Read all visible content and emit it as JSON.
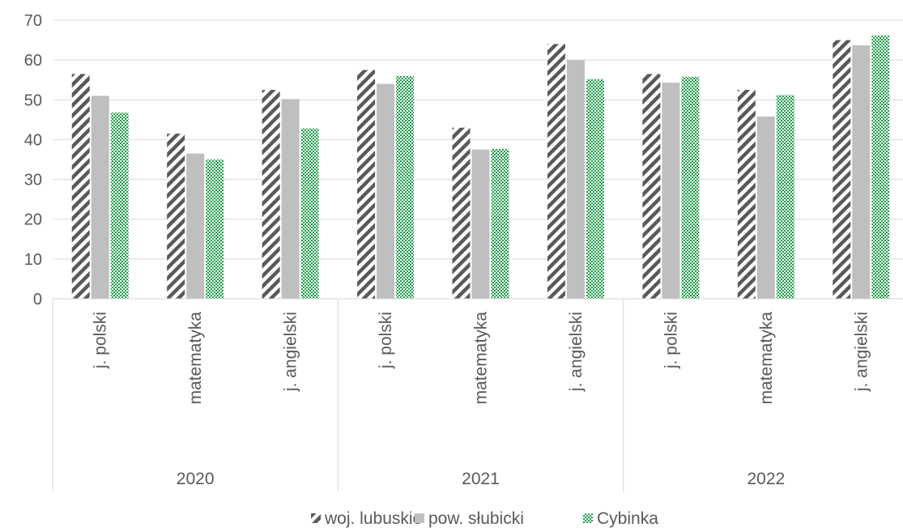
{
  "chart_data": {
    "type": "bar",
    "title": "",
    "xlabel": "",
    "ylabel": "",
    "ylim": [
      0,
      70
    ],
    "yticks": [
      0,
      10,
      20,
      30,
      40,
      50,
      60,
      70
    ],
    "grid": true,
    "legend_position": "bottom",
    "groups": [
      {
        "label": "2020",
        "categories": [
          "j. polski",
          "matematyka",
          "j. angielski"
        ]
      },
      {
        "label": "2021",
        "categories": [
          "j. polski",
          "matematyka",
          "j. angielski"
        ]
      },
      {
        "label": "2022",
        "categories": [
          "j. polski",
          "matematyka",
          "j. angielski"
        ]
      }
    ],
    "series": [
      {
        "name": "woj. lubuskie",
        "color": "#595959",
        "pattern": "wide-downward-diagonal",
        "values": [
          56.5,
          41.5,
          52.5,
          57.5,
          43,
          64,
          56.5,
          52.5,
          65
        ]
      },
      {
        "name": "pow. słubicki",
        "color": "#bfbfbf",
        "pattern": "solid",
        "values": [
          51,
          36.5,
          50.2,
          54,
          37.5,
          60,
          54.3,
          45.8,
          63.7
        ]
      },
      {
        "name": "Cybinka",
        "color": "#1e9e4a",
        "pattern": "checker",
        "values": [
          46.8,
          35,
          42.8,
          56,
          37.7,
          55.2,
          55.8,
          51.2,
          66.2
        ]
      }
    ]
  }
}
